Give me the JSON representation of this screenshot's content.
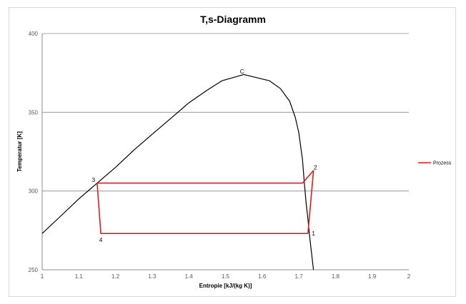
{
  "chart_data": {
    "type": "line",
    "title": "T,s-Diagramm",
    "xlabel": "Entropie [kJ/(kg K)]",
    "ylabel": "Temperatur [K]",
    "xlim": [
      1,
      2
    ],
    "ylim": [
      250,
      400
    ],
    "x_ticks": [
      "1",
      "1.1",
      "1.2",
      "1.3",
      "1.4",
      "1.5",
      "1.6",
      "1.7",
      "1.8",
      "1.9",
      "2"
    ],
    "y_ticks": [
      "250",
      "300",
      "350",
      "400"
    ],
    "grid": "horizontal",
    "legend_position": "right",
    "series": [
      {
        "color": "#000000",
        "x": [
          1.0,
          1.05,
          1.1,
          1.15,
          1.2,
          1.25,
          1.3,
          1.35,
          1.4,
          1.45,
          1.49,
          1.55,
          1.62,
          1.65,
          1.675,
          1.69,
          1.7,
          1.71,
          1.715,
          1.72,
          1.725,
          1.73,
          1.74
        ],
        "y": [
          273,
          284,
          295,
          305,
          315,
          326,
          336,
          346,
          356,
          364,
          370,
          374,
          370,
          365,
          357,
          347,
          337,
          320,
          305,
          292,
          282,
          270,
          250
        ]
      },
      {
        "name": "Prozess",
        "color": "#e31a1c",
        "x": [
          1.725,
          1.74,
          1.71,
          1.15,
          1.16,
          1.725
        ],
        "y": [
          273,
          313,
          305,
          305,
          273,
          273
        ]
      }
    ],
    "annotations": [
      {
        "text": "C",
        "x": 1.545,
        "y": 376
      },
      {
        "text": "1",
        "x": 1.74,
        "y": 273
      },
      {
        "text": "2",
        "x": 1.745,
        "y": 315
      },
      {
        "text": "3",
        "x": 1.14,
        "y": 307
      },
      {
        "text": "4",
        "x": 1.16,
        "y": 269
      }
    ]
  }
}
